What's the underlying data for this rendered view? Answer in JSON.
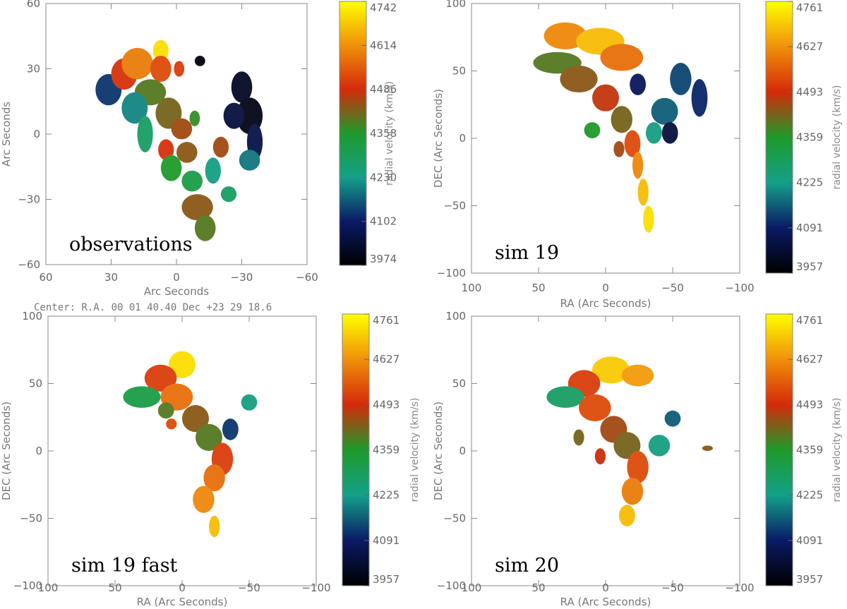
{
  "colormap": [
    "#000000",
    "#0a1a66",
    "#14a08a",
    "#1e9a2a",
    "#d42a0a",
    "#f0900a",
    "#ffff00"
  ],
  "center_note": "Center:   R.A. 00 01 40.40      Dec   +23 29 18.6",
  "chart_data": [
    {
      "type": "heatmap",
      "panel_label": "observations",
      "xlabel": "Arc Seconds",
      "ylabel": "Arc Seconds",
      "xlim": [
        60,
        -60
      ],
      "ylim": [
        -60,
        60
      ],
      "xticks": [
        "60",
        "30",
        "0",
        "−30",
        "−60"
      ],
      "yticks": [
        "−60",
        "−30",
        "0",
        "30",
        "60"
      ],
      "colorbar": {
        "label": "radial velocity (km/s)",
        "range": [
          3974,
          4742
        ],
        "ticks": [
          "3974",
          "4102",
          "4230",
          "4358",
          "4486",
          "4614",
          "4742"
        ]
      }
    },
    {
      "type": "heatmap",
      "panel_label": "sim 19",
      "xlabel": "RA (Arc Seconds)",
      "ylabel": "DEC (Arc Seconds)",
      "xlim": [
        100,
        -100
      ],
      "ylim": [
        -100,
        100
      ],
      "xticks": [
        "100",
        "50",
        "0",
        "−50",
        "−100"
      ],
      "yticks": [
        "−100",
        "−50",
        "0",
        "50",
        "100"
      ],
      "colorbar": {
        "label": "radial velocity (km/s)",
        "range": [
          3957,
          4761
        ],
        "ticks": [
          "3957",
          "4091",
          "4225",
          "4359",
          "4493",
          "4627",
          "4761"
        ]
      }
    },
    {
      "type": "heatmap",
      "panel_label": "sim 19 fast",
      "xlabel": "RA (Arc Seconds)",
      "ylabel": "DEC (Arc Seconds)",
      "xlim": [
        100,
        -100
      ],
      "ylim": [
        -100,
        100
      ],
      "xticks": [
        "100",
        "50",
        "0",
        "−50",
        "−100"
      ],
      "yticks": [
        "−100",
        "−50",
        "0",
        "50",
        "100"
      ],
      "colorbar": {
        "label": "radial velocity (km/s)",
        "range": [
          3957,
          4761
        ],
        "ticks": [
          "3957",
          "4091",
          "4225",
          "4359",
          "4493",
          "4627",
          "4761"
        ]
      }
    },
    {
      "type": "heatmap",
      "panel_label": "sim 20",
      "xlabel": "RA (Arc Seconds)",
      "ylabel": "DEC (Arc Seconds)",
      "xlim": [
        100,
        -100
      ],
      "ylim": [
        -100,
        100
      ],
      "xticks": [
        "100",
        "50",
        "0",
        "−50",
        "−100"
      ],
      "yticks": [
        "−100",
        "−50",
        "0",
        "50",
        "100"
      ],
      "colorbar": {
        "label": "radial velocity (km/s)",
        "range": [
          3957,
          4761
        ],
        "ticks": [
          "3957",
          "4091",
          "4225",
          "4359",
          "4493",
          "4627",
          "4761"
        ]
      }
    }
  ]
}
